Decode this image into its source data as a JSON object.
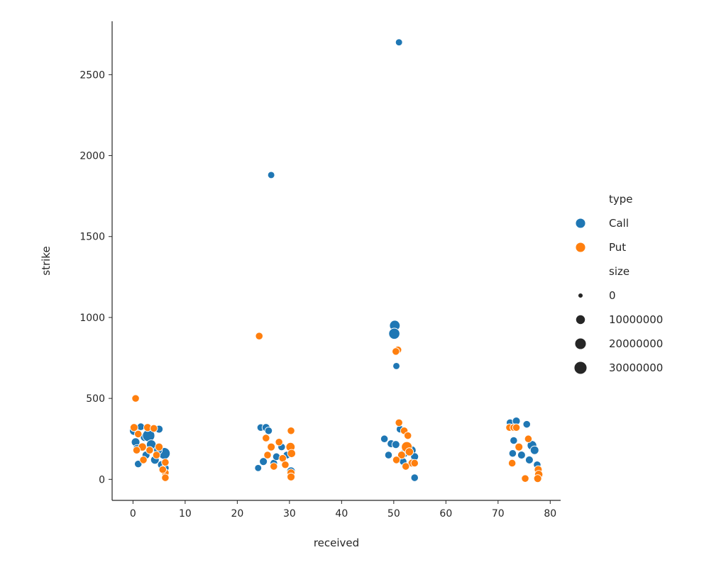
{
  "chart_data": {
    "type": "scatter",
    "xlabel": "received",
    "ylabel": "strike",
    "xlim": [
      -4,
      82
    ],
    "ylim": [
      -130,
      2830
    ],
    "xticks": [
      0,
      10,
      20,
      30,
      40,
      50,
      60,
      70,
      80
    ],
    "yticks": [
      0,
      500,
      1000,
      1500,
      2000,
      2500
    ],
    "grid": false,
    "legend_placement": "center-right",
    "legend": {
      "hue_title": "type",
      "hue_entries": [
        {
          "label": "Call",
          "color": "#1f77b4"
        },
        {
          "label": "Put",
          "color": "#ff7f0e"
        }
      ],
      "size_title": "size",
      "size_entries": [
        {
          "label": "0",
          "value": 0
        },
        {
          "label": "10000000",
          "value": 10000000
        },
        {
          "label": "20000000",
          "value": 20000000
        },
        {
          "label": "30000000",
          "value": 30000000
        }
      ]
    },
    "series": [
      {
        "name": "Call",
        "color": "#1f77b4",
        "points": [
          [
            51,
            2700,
            2000000
          ],
          [
            26.5,
            1880,
            2000000
          ],
          [
            50.2,
            950,
            15000000
          ],
          [
            50.1,
            900,
            18000000
          ],
          [
            50.5,
            700,
            2000000
          ],
          [
            0.2,
            300,
            8000000
          ],
          [
            0.5,
            230,
            6000000
          ],
          [
            1.5,
            325,
            3000000
          ],
          [
            2.2,
            260,
            5000000
          ],
          [
            3,
            270,
            26000000
          ],
          [
            3.5,
            215,
            10000000
          ],
          [
            4.2,
            120,
            6000000
          ],
          [
            5,
            310,
            4000000
          ],
          [
            5.5,
            90,
            5000000
          ],
          [
            6,
            160,
            22000000
          ],
          [
            6.2,
            70,
            3000000
          ],
          [
            1,
            95,
            3000000
          ],
          [
            2.5,
            150,
            4000000
          ],
          [
            0.8,
            190,
            5000000
          ],
          [
            4.8,
            180,
            6000000
          ],
          [
            24.5,
            320,
            3000000
          ],
          [
            25.5,
            320,
            4000000
          ],
          [
            26,
            300,
            3000000
          ],
          [
            25,
            110,
            4000000
          ],
          [
            27,
            100,
            3000000
          ],
          [
            28.5,
            200,
            3000000
          ],
          [
            29.5,
            150,
            3000000
          ],
          [
            30.3,
            50,
            6000000
          ],
          [
            24,
            70,
            2000000
          ],
          [
            27.5,
            140,
            3000000
          ],
          [
            48.2,
            250,
            3000000
          ],
          [
            49.5,
            220,
            4000000
          ],
          [
            50.4,
            215,
            4000000
          ],
          [
            51.2,
            310,
            3000000
          ],
          [
            52,
            160,
            5000000
          ],
          [
            53.5,
            180,
            5000000
          ],
          [
            54,
            140,
            4000000
          ],
          [
            54,
            10,
            3000000
          ],
          [
            49,
            150,
            3000000
          ],
          [
            51.8,
            110,
            3000000
          ],
          [
            72.3,
            350,
            3000000
          ],
          [
            73.5,
            360,
            4000000
          ],
          [
            75.5,
            340,
            3000000
          ],
          [
            73,
            240,
            3000000
          ],
          [
            76.5,
            210,
            10000000
          ],
          [
            77,
            180,
            6000000
          ],
          [
            74.5,
            150,
            4000000
          ],
          [
            77.5,
            90,
            3000000
          ],
          [
            76,
            120,
            4000000
          ],
          [
            72.8,
            160,
            3000000
          ]
        ]
      },
      {
        "name": "Put",
        "color": "#ff7f0e",
        "points": [
          [
            24.2,
            885,
            3000000
          ],
          [
            50.8,
            800,
            3000000
          ],
          [
            50.4,
            790,
            3000000
          ],
          [
            0.5,
            500,
            3000000
          ],
          [
            0.2,
            320,
            4000000
          ],
          [
            1,
            280,
            3000000
          ],
          [
            2.8,
            320,
            4000000
          ],
          [
            4,
            315,
            3000000
          ],
          [
            5,
            200,
            4000000
          ],
          [
            1.8,
            200,
            5000000
          ],
          [
            6.2,
            105,
            3000000
          ],
          [
            6.2,
            40,
            3000000
          ],
          [
            6.2,
            10,
            3000000
          ],
          [
            3.2,
            180,
            3000000
          ],
          [
            2,
            120,
            3000000
          ],
          [
            4.5,
            150,
            3000000
          ],
          [
            0.7,
            180,
            3000000
          ],
          [
            5.7,
            60,
            3000000
          ],
          [
            25.5,
            255,
            3000000
          ],
          [
            26.5,
            200,
            4000000
          ],
          [
            28,
            230,
            3000000
          ],
          [
            30.3,
            300,
            3000000
          ],
          [
            30.2,
            200,
            8000000
          ],
          [
            30.4,
            160,
            5000000
          ],
          [
            30.3,
            40,
            4000000
          ],
          [
            30.3,
            15,
            4000000
          ],
          [
            25.8,
            150,
            3000000
          ],
          [
            28.7,
            130,
            3000000
          ],
          [
            27,
            80,
            3000000
          ],
          [
            29.2,
            90,
            3000000
          ],
          [
            51,
            350,
            3000000
          ],
          [
            52,
            300,
            3000000
          ],
          [
            52.7,
            270,
            3000000
          ],
          [
            52.5,
            200,
            16000000
          ],
          [
            53,
            170,
            5000000
          ],
          [
            53.5,
            100,
            4000000
          ],
          [
            54,
            100,
            3000000
          ],
          [
            51.5,
            150,
            4000000
          ],
          [
            50.5,
            120,
            3000000
          ],
          [
            52.3,
            80,
            3000000
          ],
          [
            72.2,
            320,
            3000000
          ],
          [
            73,
            320,
            3000000
          ],
          [
            73.5,
            320,
            3000000
          ],
          [
            75.8,
            250,
            3000000
          ],
          [
            74,
            200,
            4000000
          ],
          [
            77.7,
            60,
            4000000
          ],
          [
            77.8,
            30,
            5000000
          ],
          [
            77.6,
            5,
            4000000
          ],
          [
            75.2,
            5,
            3000000
          ],
          [
            72.7,
            100,
            3000000
          ]
        ]
      }
    ]
  }
}
